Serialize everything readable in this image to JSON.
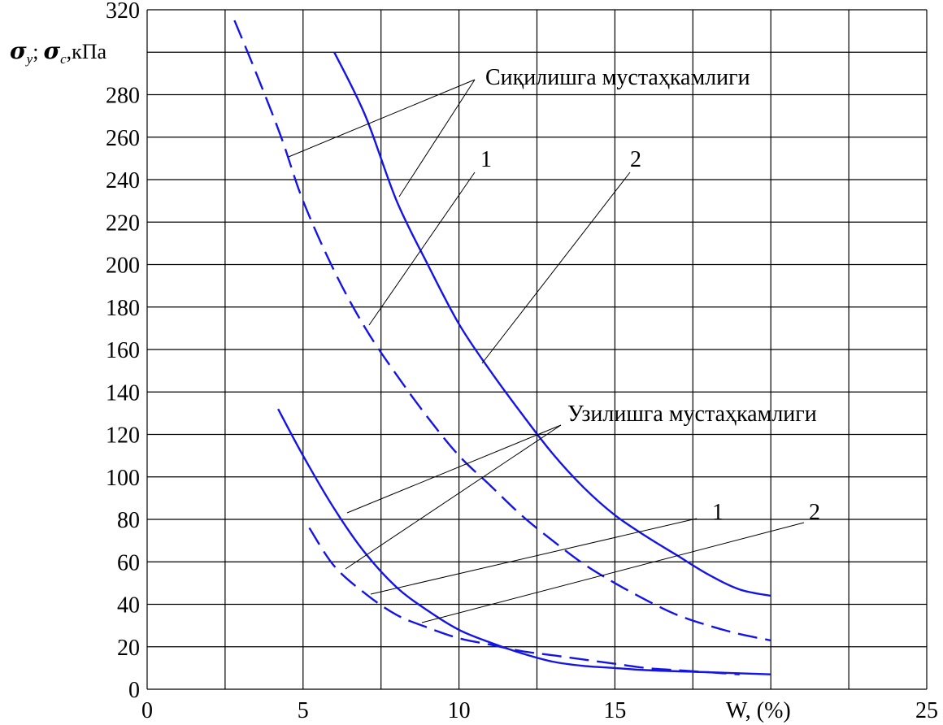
{
  "chart_data": {
    "type": "line",
    "xlabel": "W, (%)",
    "ylabel": {
      "sigma1": "σ",
      "sub1": "у",
      "sep": ";",
      "sigma2": "σ",
      "sub2": "с",
      "unit": ",кПа"
    },
    "xlim": [
      0,
      25
    ],
    "ylim": [
      0,
      320
    ],
    "x_ticks": [
      "0",
      "5",
      "10",
      "15",
      "20",
      "25"
    ],
    "x_ticks_shown": [
      "0",
      "5",
      "10",
      "15",
      "25"
    ],
    "y_ticks": [
      "0",
      "20",
      "40",
      "60",
      "80",
      "100",
      "120",
      "140",
      "160",
      "180",
      "200",
      "220",
      "240",
      "260",
      "280",
      "300",
      "320"
    ],
    "y_ticks_shown": [
      "0",
      "20",
      "40",
      "60",
      "80",
      "100",
      "120",
      "140",
      "160",
      "180",
      "200",
      "220",
      "240",
      "260",
      "280",
      "320"
    ],
    "grid": true,
    "annotations": {
      "compression_title": "Сиқилишга мустаҳкамлиги",
      "tension_title": "Узилишга мустаҳкамлиги",
      "label_1": "1",
      "label_2": "2"
    },
    "series": [
      {
        "group": "compression",
        "style": "dashed",
        "color": "#1414e6",
        "x": [
          2.8,
          3.5,
          4.3,
          5.0,
          6.0,
          7.0,
          8.0,
          9.0,
          10.0,
          11.0,
          12.0,
          13.0,
          14.0,
          15.0,
          16.0,
          17.0,
          18.0,
          19.0,
          20.0
        ],
        "y": [
          315,
          290,
          260,
          230,
          197,
          170,
          148,
          128,
          110,
          96,
          82,
          70,
          59,
          50,
          42,
          35,
          30,
          26,
          23
        ]
      },
      {
        "group": "compression",
        "style": "solid",
        "color": "#1414e6",
        "x": [
          6.0,
          7.0,
          8.0,
          9.0,
          10.0,
          11.0,
          12.0,
          13.0,
          14.0,
          15.0,
          16.0,
          17.0,
          18.0,
          19.0,
          20.0
        ],
        "y": [
          300,
          270,
          230,
          200,
          172,
          150,
          130,
          111,
          95,
          82,
          72,
          63,
          54,
          47,
          44
        ]
      },
      {
        "group": "tension",
        "style": "solid",
        "color": "#1414e6",
        "x": [
          4.2,
          5.0,
          6.0,
          7.0,
          8.0,
          9.0,
          10.0,
          11.0,
          12.0,
          13.0,
          14.0,
          15.0,
          16.0,
          18.0,
          20.0
        ],
        "y": [
          132,
          110,
          85,
          64,
          48,
          37,
          28,
          22,
          17,
          13,
          11,
          10,
          9,
          8,
          7
        ]
      },
      {
        "group": "tension",
        "style": "dashed",
        "color": "#1414e6",
        "x": [
          5.2,
          6.0,
          7.0,
          8.0,
          9.0,
          10.0,
          11.0,
          12.0,
          13.0,
          14.0,
          15.0,
          16.0,
          17.0,
          18.0,
          19.0
        ],
        "y": [
          76,
          58,
          45,
          35,
          29,
          24,
          21,
          18,
          16,
          14,
          12,
          10,
          9,
          8,
          7
        ]
      }
    ]
  }
}
